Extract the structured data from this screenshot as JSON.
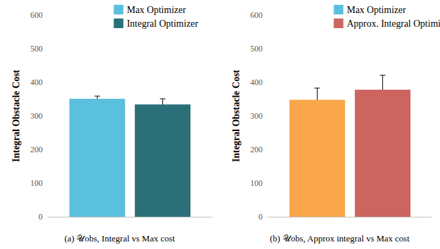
{
  "chart_data": [
    {
      "type": "bar",
      "title": "(a) 𝒰obs, Integral vs Max cost",
      "y_label": "Integral Obstacle Cost",
      "categories": [
        null
      ],
      "series": [
        {
          "name": "Max Optimizer",
          "color": "#5bc0de",
          "values": [
            351
          ],
          "errors": [
            8
          ]
        },
        {
          "name": "Integral Optimizer",
          "color": "#2b6f78",
          "values": [
            334
          ],
          "errors": [
            17
          ]
        }
      ],
      "ylim": [
        0,
        600
      ],
      "yticks": [
        0,
        100,
        200,
        300,
        400,
        500,
        600
      ],
      "grid": false,
      "legend": "top"
    },
    {
      "type": "bar",
      "title": "(b) 𝒰obs, Approx integral vs Max cost",
      "y_label": "Integral Obstacle Cost",
      "categories": [
        null
      ],
      "series": [
        {
          "name": "Max Optimizer",
          "color": "#f9a64a",
          "values": [
            348
          ],
          "errors": [
            35
          ]
        },
        {
          "name": "Approx. Integral Optimizer",
          "color": "#cc6560",
          "values": [
            378
          ],
          "errors": [
            43
          ]
        }
      ],
      "ylim": [
        0,
        600
      ],
      "yticks": [
        0,
        100,
        200,
        300,
        400,
        500,
        600
      ],
      "grid": false,
      "legend": "top"
    }
  ]
}
